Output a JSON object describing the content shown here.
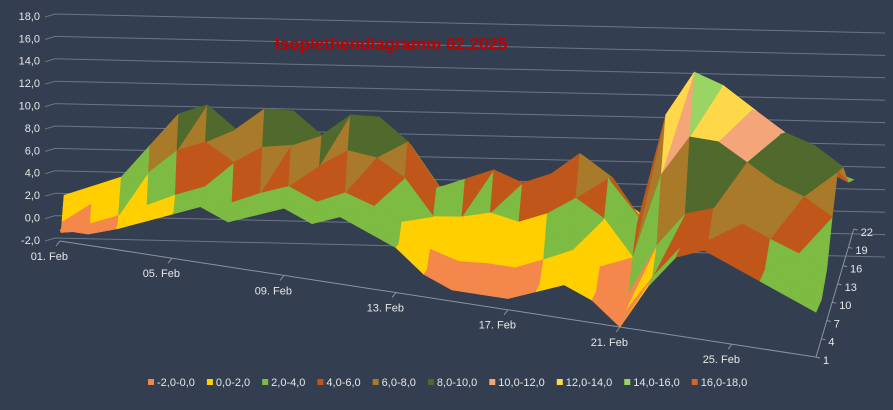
{
  "chart_data": {
    "type": "surface",
    "title": "Isoplethendiagramm 02.2025",
    "x": [
      "01. Feb",
      null,
      null,
      null,
      "05. Feb",
      null,
      null,
      null,
      "09. Feb",
      null,
      null,
      null,
      "13. Feb",
      null,
      null,
      null,
      "17. Feb",
      null,
      null,
      null,
      "21. Feb",
      null,
      null,
      null,
      "25. Feb",
      null,
      null,
      null
    ],
    "depth": [
      1,
      4,
      7,
      10,
      13,
      16,
      19,
      22
    ],
    "zlim": [
      -2,
      18
    ],
    "zticks": [
      {
        "value": -2,
        "label": "-2,0"
      },
      {
        "value": 0,
        "label": "0,0"
      },
      {
        "value": 2,
        "label": "2,0"
      },
      {
        "value": 4,
        "label": "4,0"
      },
      {
        "value": 6,
        "label": "6,0"
      },
      {
        "value": 8,
        "label": "8,0"
      },
      {
        "value": 10,
        "label": "10,0"
      },
      {
        "value": 12,
        "label": "12,0"
      },
      {
        "value": 14,
        "label": "14,0"
      },
      {
        "value": 16,
        "label": "16,0"
      },
      {
        "value": 18,
        "label": "18,0"
      }
    ],
    "grid": true,
    "legend_position": "bottom",
    "bands": [
      {
        "label": "-2,0-0,0",
        "color": "#f4874b"
      },
      {
        "label": "0,0-2,0",
        "color": "#ffcf00"
      },
      {
        "label": "2,0-4,0",
        "color": "#7dbb42"
      },
      {
        "label": "4,0-6,0",
        "color": "#c0561a"
      },
      {
        "label": "6,0-8,0",
        "color": "#a87a2a"
      },
      {
        "label": "8,0-10,0",
        "color": "#4f6a2c"
      },
      {
        "label": "10,0-12,0",
        "color": "#f4a57a"
      },
      {
        "label": "12,0-14,0",
        "color": "#ffd84a"
      },
      {
        "label": "14,0-16,0",
        "color": "#9ad462"
      },
      {
        "label": "16,0-18,0",
        "color": "#d4622a"
      }
    ],
    "z": [
      [
        -1,
        -1,
        0,
        1,
        2,
        3,
        2,
        3,
        4,
        3,
        4,
        3,
        2,
        0,
        -1,
        -1,
        -1,
        0,
        1,
        0,
        -2,
        2,
        5,
        6,
        5,
        4,
        3,
        2
      ],
      [
        -1.5,
        -1,
        -0.5,
        0.5,
        1.5,
        2.5,
        2,
        2.5,
        3.5,
        3,
        3.5,
        2.5,
        1.5,
        -0.5,
        -1.5,
        -1.5,
        -1.5,
        -0.5,
        0.5,
        -0.5,
        -2,
        1.5,
        4.5,
        5.5,
        4.5,
        3.5,
        2.5,
        1.5
      ],
      [
        -0.8,
        -0.7,
        0.3,
        1.5,
        2.7,
        3.7,
        2.6,
        3.7,
        4.6,
        3.5,
        4.6,
        3.7,
        2.6,
        0.4,
        -0.4,
        -0.3,
        -0.4,
        0.6,
        1.7,
        0.6,
        -1.6,
        3,
        6.1,
        6.9,
        5.8,
        4.7,
        3.7,
        2.6
      ],
      [
        0.2,
        0.8,
        1.8,
        4,
        6.2,
        7.2,
        5.6,
        7.2,
        7.6,
        6,
        7.6,
        7.2,
        5.6,
        2.4,
        2.6,
        3.2,
        2.6,
        3.6,
        5.2,
        3.6,
        0.4,
        8,
        11.6,
        11.4,
        9.8,
        8.2,
        7.2,
        5.6
      ],
      [
        1,
        2,
        3,
        6,
        9,
        10,
        8,
        10,
        10,
        8,
        10,
        10,
        8,
        4,
        5,
        6,
        5,
        6,
        8,
        6,
        2,
        12,
        16,
        15,
        13,
        11,
        10,
        8
      ],
      [
        0.6,
        1.4,
        2.4,
        5,
        7.6,
        8.6,
        6.8,
        8.6,
        8.8,
        7,
        8.8,
        8.6,
        6.8,
        3.2,
        3.8,
        4.6,
        3.8,
        4.8,
        6.6,
        4.8,
        1.2,
        10,
        13.8,
        13.2,
        11.4,
        9.6,
        8.6,
        6.8
      ],
      [
        -0.4,
        -0.1,
        0.9,
        2.5,
        4.1,
        5.1,
        3.8,
        5.1,
        5.8,
        4.5,
        5.8,
        5.1,
        3.8,
        1.2,
        0.8,
        1.1,
        0.8,
        1.8,
        3.1,
        1.8,
        -0.8,
        5,
        8.3,
        8.7,
        7.4,
        6.1,
        5.1,
        3.8
      ],
      [
        -0.9,
        -0.5,
        0.5,
        1.4,
        2.5,
        3.5,
        2.8,
        3.5,
        4.4,
        3.6,
        4.4,
        3.4,
        2.4,
        0.2,
        -0.6,
        -0.5,
        -0.2,
        0.4,
        1.5,
        0.4,
        -1.4,
        3.2,
        5.8,
        6.6,
        5.5,
        4.5,
        3.4,
        2.4
      ]
    ]
  }
}
